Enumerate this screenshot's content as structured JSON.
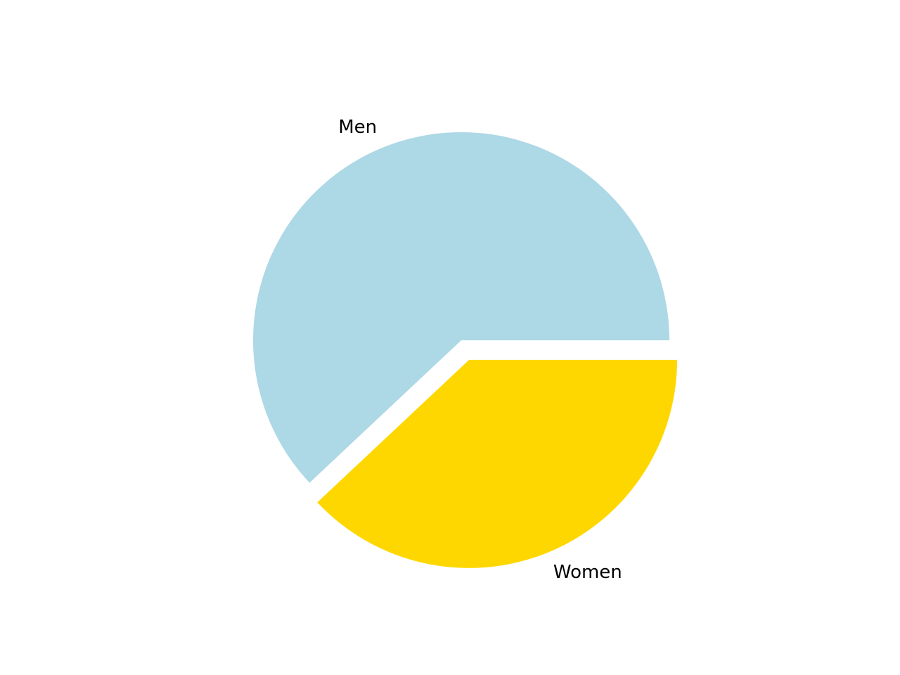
{
  "chart_data": {
    "type": "pie",
    "title": "",
    "start_angle_deg": 0,
    "direction": "counterclockwise",
    "slices": [
      {
        "label": "Men",
        "value": 62,
        "color": "#add8e6",
        "exploded": false
      },
      {
        "label": "Women",
        "value": 38,
        "color": "#ffd700",
        "exploded": true
      }
    ],
    "legend": "none"
  }
}
